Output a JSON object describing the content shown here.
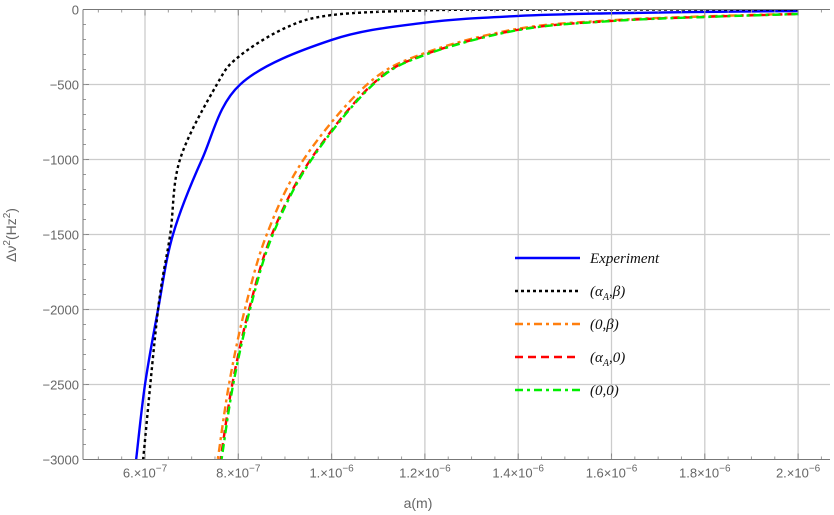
{
  "chart_data": {
    "type": "line",
    "title": "",
    "xlabel": "a(m)",
    "ylabel": {
      "base": "Δν",
      "sup1": "2",
      "mid": "(Hz",
      "sup2": "2",
      "end": ")"
    },
    "xlim": [
      4.67e-07,
      2.07e-06
    ],
    "ylim": [
      -3000,
      0
    ],
    "grid": true,
    "legend_placement": "center-right",
    "x_ticks": [
      {
        "value": 6e-07,
        "mantissa": "6.",
        "exp": "−7"
      },
      {
        "value": 8e-07,
        "mantissa": "8.",
        "exp": "−7"
      },
      {
        "value": 1e-06,
        "mantissa": "1.",
        "exp": "−6"
      },
      {
        "value": 1.2e-06,
        "mantissa": "1.2",
        "exp": "−6"
      },
      {
        "value": 1.4e-06,
        "mantissa": "1.4",
        "exp": "−6"
      },
      {
        "value": 1.6e-06,
        "mantissa": "1.6",
        "exp": "−6"
      },
      {
        "value": 1.8e-06,
        "mantissa": "1.8",
        "exp": "−6"
      },
      {
        "value": 2e-06,
        "mantissa": "2.",
        "exp": "−6"
      }
    ],
    "y_ticks": [
      {
        "value": 0,
        "label": "0"
      },
      {
        "value": -500,
        "label": "−500"
      },
      {
        "value": -1000,
        "label": "−1000"
      },
      {
        "value": -1500,
        "label": "−1500"
      },
      {
        "value": -2000,
        "label": "−2000"
      },
      {
        "value": -2500,
        "label": "−2500"
      },
      {
        "value": -3000,
        "label": "−3000"
      }
    ],
    "series": [
      {
        "name": "Experiment",
        "color": "#0000ff",
        "style": "solid",
        "points": [
          [
            5.81e-07,
            -3000
          ],
          [
            6e-07,
            -2500
          ],
          [
            6.28e-07,
            -2000
          ],
          [
            6.6e-07,
            -1500
          ],
          [
            7.22e-07,
            -1000
          ],
          [
            8.04e-07,
            -500
          ],
          [
            1e-06,
            -203
          ],
          [
            1.2e-06,
            -88
          ],
          [
            1.4e-06,
            -43
          ],
          [
            1.6e-06,
            -25
          ],
          [
            1.8e-06,
            -16
          ],
          [
            2e-06,
            -10
          ]
        ]
      },
      {
        "name": "(α_A,β)",
        "color": "#000000",
        "style": "dotted",
        "points": [
          [
            5.96e-07,
            -3000
          ],
          [
            6.28e-07,
            -2000
          ],
          [
            6.54e-07,
            -1500
          ],
          [
            6.75e-07,
            -1000
          ],
          [
            7.54e-07,
            -500
          ],
          [
            8e-07,
            -317
          ],
          [
            9e-07,
            -124
          ],
          [
            1e-06,
            -37
          ],
          [
            1.2e-06,
            -6
          ],
          [
            1.4e-06,
            -1
          ],
          [
            2e-06,
            0
          ]
        ]
      },
      {
        "name": "(0,β)",
        "color": "#ff7f0e",
        "style": "dashdot",
        "points": [
          [
            7.56e-07,
            -3000
          ],
          [
            7.8e-07,
            -2500
          ],
          [
            8.14e-07,
            -2000
          ],
          [
            8.61e-07,
            -1500
          ],
          [
            9.4e-07,
            -1000
          ],
          [
            1.076e-06,
            -500
          ],
          [
            1.2e-06,
            -290
          ],
          [
            1.4e-06,
            -128
          ],
          [
            1.6e-06,
            -72
          ],
          [
            1.8e-06,
            -46
          ],
          [
            2e-06,
            -28
          ]
        ]
      },
      {
        "name": "(α_A,0)",
        "color": "#ff0000",
        "style": "dashed",
        "points": [
          [
            7.62e-07,
            -3000
          ],
          [
            7.87e-07,
            -2500
          ],
          [
            8.23e-07,
            -2000
          ],
          [
            8.72e-07,
            -1500
          ],
          [
            9.55e-07,
            -1000
          ],
          [
            1.087e-06,
            -500
          ],
          [
            1.2e-06,
            -300
          ],
          [
            1.4e-06,
            -135
          ],
          [
            1.6e-06,
            -76
          ],
          [
            1.8e-06,
            -49
          ],
          [
            2e-06,
            -30
          ]
        ]
      },
      {
        "name": "(0,0)",
        "color": "#00ee00",
        "style": "dashdot",
        "points": [
          [
            7.64e-07,
            -3000
          ],
          [
            7.89e-07,
            -2500
          ],
          [
            8.25e-07,
            -2000
          ],
          [
            8.74e-07,
            -1500
          ],
          [
            9.57e-07,
            -1000
          ],
          [
            1.089e-06,
            -500
          ],
          [
            1.2e-06,
            -303
          ],
          [
            1.4e-06,
            -137
          ],
          [
            1.6e-06,
            -77
          ],
          [
            1.8e-06,
            -50
          ],
          [
            2e-06,
            -30
          ]
        ]
      }
    ],
    "legend": [
      {
        "label": "Experiment",
        "base": "Experiment",
        "sub": "",
        "rest": ""
      },
      {
        "label": "(α_A,β)",
        "base": "(α",
        "sub": "A",
        "rest": ",β)"
      },
      {
        "label": "(0,β)",
        "base": "(0,β)",
        "sub": "",
        "rest": ""
      },
      {
        "label": "(α_A,0)",
        "base": "(α",
        "sub": "A",
        "rest": ",0)"
      },
      {
        "label": "(0,0)",
        "base": "(0,0)",
        "sub": "",
        "rest": ""
      }
    ]
  }
}
